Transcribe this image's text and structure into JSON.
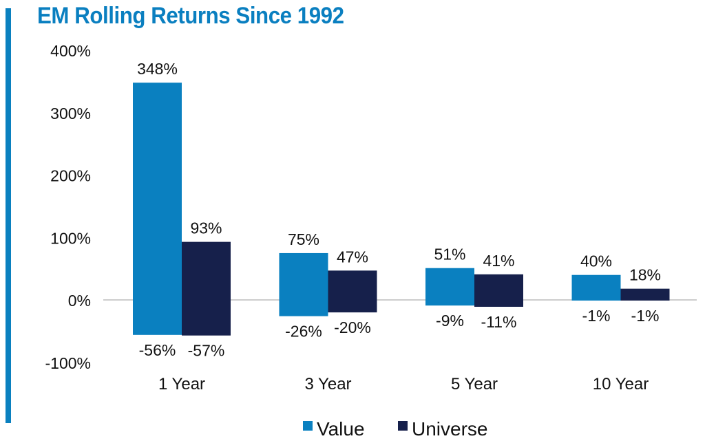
{
  "chart_data": {
    "type": "bar",
    "subtype": "floating-range",
    "title": "EM Rolling Returns Since 1992",
    "xlabel": "",
    "ylabel": "",
    "categories": [
      "1 Year",
      "3 Year",
      "5 Year",
      "10 Year"
    ],
    "yticks": [
      "400%",
      "300%",
      "200%",
      "100%",
      "0%",
      "-100%"
    ],
    "ytick_values": [
      400,
      300,
      200,
      100,
      0,
      -100
    ],
    "ylim": [
      -100,
      400
    ],
    "grid": false,
    "legend_position": "bottom",
    "series": [
      {
        "name": "Value",
        "color": "#0a80c0",
        "max": [
          348,
          75,
          51,
          40
        ],
        "min": [
          -56,
          -26,
          -9,
          -1
        ],
        "max_labels": [
          "348%",
          "75%",
          "51%",
          "40%"
        ],
        "min_labels": [
          "-56%",
          "-26%",
          "-9%",
          "-1%"
        ]
      },
      {
        "name": "Universe",
        "color": "#16204b",
        "max": [
          93,
          47,
          41,
          18
        ],
        "min": [
          -57,
          -20,
          -11,
          -1
        ],
        "max_labels": [
          "93%",
          "47%",
          "41%",
          "18%"
        ],
        "min_labels": [
          "-57%",
          "-20%",
          "-11%",
          "-1%"
        ]
      }
    ]
  }
}
